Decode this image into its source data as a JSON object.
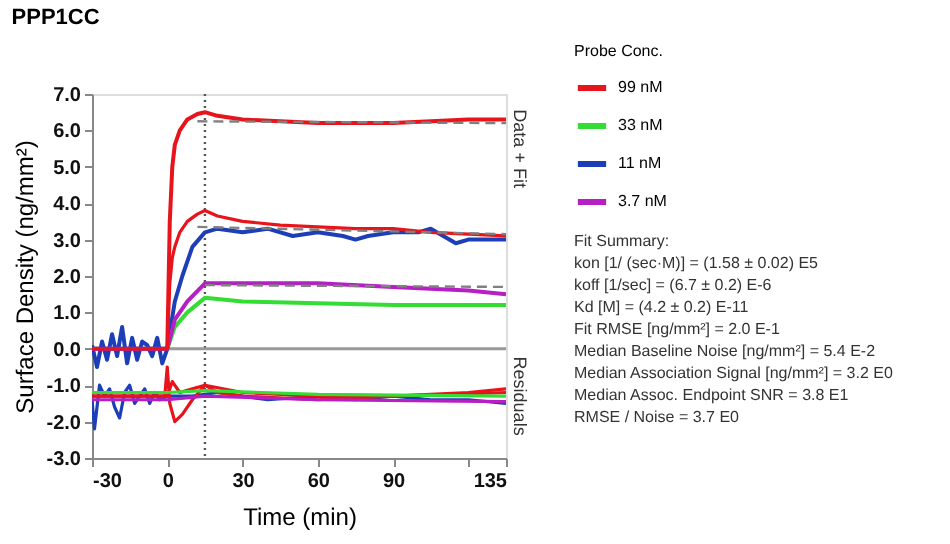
{
  "chart_data": {
    "type": "line",
    "title": "PPP1CC",
    "xlabel": "Time (min)",
    "ylabel": "Surface Density (ng/mm²)",
    "legend_title": "Probe Conc.",
    "legend": "top right",
    "grid": false,
    "marker": "none",
    "line_style": "solid",
    "xlim": [
      -30,
      135
    ],
    "xticks": [
      -30,
      0,
      30,
      60,
      90,
      {
        "value": 120,
        "label": null
      },
      135
    ],
    "ylim": [
      -3,
      7
    ],
    "yticks": [
      {
        "value": -3,
        "label": "-3.0"
      },
      {
        "value": -2,
        "label": "-2.0"
      },
      {
        "value": -1,
        "label": "-1.0"
      },
      {
        "value": 0,
        "label": "0.0"
      },
      {
        "value": 1,
        "label": "1.0"
      },
      {
        "value": 2,
        "label": "2.0"
      },
      {
        "value": 3,
        "label": "3.0"
      },
      {
        "value": 4,
        "label": "4.0"
      },
      {
        "value": 5,
        "label": "5.0"
      },
      {
        "value": 6,
        "label": "6.0"
      },
      {
        "value": 7,
        "label": "7.0"
      }
    ],
    "ref_lines": [
      {
        "axis": "y",
        "value": 0,
        "label": null,
        "color": "#999999",
        "line_style": "solid"
      },
      {
        "axis": "x",
        "value": 15,
        "label": null,
        "color": "#555555",
        "line_style": "dotted"
      }
    ],
    "annotations": [
      "Data + Fit",
      "Residuals",
      "Fit Summary:\n\nkon  [1/ (sec·M)]  =   (1.58 ± 0.02) E5\nkoff  [1/sec]  =   (6.7 ± 0.2) E-6\nKd  [M]  =   (4.2 ± 0.2) E-11\n\nFit RMSE [ng/mm²]  =   2.0 E-1\nMedian Baseline Noise [ng/mm²]  =   5.4 E-2\nMedian Association Signal [ng/mm²]  =   3.2 E0\nMedian Assoc. Endpoint SNR  =   3.8 E1\nRMSE / Noise  =   3.7 E0"
    ],
    "series": [
      {
        "name": "99 nM",
        "color": "#e8141c",
        "x": [
          -30,
          -20,
          -10,
          0,
          1,
          2,
          3,
          5,
          8,
          12,
          15,
          20,
          30,
          45,
          60,
          75,
          90,
          105,
          120,
          135
        ],
        "values": [
          0,
          0,
          0,
          0,
          3.5,
          5.0,
          5.6,
          6.0,
          6.3,
          6.45,
          6.5,
          6.4,
          6.3,
          6.25,
          6.2,
          6.2,
          6.2,
          6.25,
          6.3,
          6.3
        ]
      },
      {
        "name": "33 nM",
        "color": "#33dd33",
        "x": [
          -30,
          0,
          3,
          8,
          15,
          30,
          60,
          90,
          120,
          135
        ],
        "values": [
          0,
          0,
          0.6,
          1.0,
          1.4,
          1.3,
          1.25,
          1.2,
          1.2,
          1.2
        ]
      },
      {
        "name": "11 nM",
        "color": "#1c3fb8",
        "x": [
          -30,
          -28,
          -26,
          -24,
          -22,
          -20,
          -18,
          -16,
          -14,
          -12,
          -10,
          -8,
          -6,
          -4,
          -2,
          0,
          3,
          6,
          10,
          15,
          20,
          30,
          40,
          50,
          60,
          70,
          75,
          80,
          90,
          100,
          105,
          110,
          115,
          120,
          135
        ],
        "values": [
          0.1,
          -0.5,
          0.2,
          -0.3,
          0.4,
          -0.2,
          0.6,
          -0.4,
          0.3,
          -0.3,
          0.2,
          0.1,
          -0.2,
          0.3,
          -0.4,
          0,
          1.3,
          2.0,
          2.8,
          3.2,
          3.3,
          3.2,
          3.3,
          3.1,
          3.2,
          3.1,
          3.0,
          3.1,
          3.2,
          3.2,
          3.3,
          3.1,
          2.9,
          3.0,
          3.0
        ]
      },
      {
        "name": "3.7 nM",
        "color": "#b51fc4",
        "x": [
          -30,
          0,
          3,
          8,
          15,
          30,
          60,
          90,
          120,
          135
        ],
        "values": [
          0,
          0,
          0.8,
          1.3,
          1.8,
          1.8,
          1.8,
          1.7,
          1.6,
          1.5
        ]
      },
      {
        "color": "#e8141c",
        "x": [
          -30,
          0,
          1,
          2,
          3,
          5,
          8,
          12,
          15,
          20,
          30,
          45,
          60,
          75,
          90,
          105,
          120,
          135
        ],
        "values": [
          0,
          0,
          1.8,
          2.5,
          2.8,
          3.2,
          3.5,
          3.7,
          3.8,
          3.65,
          3.5,
          3.4,
          3.35,
          3.3,
          3.3,
          3.2,
          3.15,
          3.1
        ]
      },
      {
        "color": "#808080",
        "line_style": "dashed",
        "x": [
          12,
          135
        ],
        "values": [
          6.25,
          6.2
        ]
      },
      {
        "color": "#808080",
        "line_style": "dashed",
        "x": [
          12,
          135
        ],
        "values": [
          3.35,
          3.15
        ]
      },
      {
        "color": "#808080",
        "line_style": "dashed",
        "x": [
          15,
          135
        ],
        "values": [
          1.75,
          1.7
        ]
      },
      {
        "color": "#1c3fb8",
        "x": [
          -30,
          -29,
          -27,
          -25,
          -23,
          -21,
          -19,
          -17,
          -15,
          -13,
          -11,
          -9,
          -7,
          -5,
          -3,
          0,
          10,
          20,
          30,
          40,
          60,
          75,
          90,
          105,
          120,
          135
        ],
        "values": [
          -1.4,
          -2.2,
          -1.0,
          -1.3,
          -1.1,
          -1.6,
          -1.9,
          -1.2,
          -1.0,
          -1.5,
          -1.3,
          -1.1,
          -1.5,
          -1.2,
          -1.4,
          -1.3,
          -1.3,
          -1.2,
          -1.3,
          -1.4,
          -1.3,
          -1.4,
          -1.3,
          -1.4,
          -1.4,
          -1.5
        ]
      },
      {
        "color": "#e8141c",
        "x": [
          -30,
          -10,
          -1,
          0,
          1,
          3,
          6,
          10,
          15,
          20,
          30,
          60,
          90,
          120,
          135
        ],
        "values": [
          -1.3,
          -1.3,
          -1.3,
          -0.5,
          -1.5,
          -2.0,
          -1.8,
          -1.4,
          -1.0,
          -1.2,
          -1.3,
          -1.4,
          -1.3,
          -1.2,
          -1.1
        ]
      },
      {
        "color": "#e8141c",
        "x": [
          -30,
          0,
          2,
          5,
          10,
          15,
          30,
          60,
          90,
          135
        ],
        "values": [
          -1.3,
          -1.3,
          -0.9,
          -1.2,
          -1.1,
          -1.0,
          -1.2,
          -1.3,
          -1.3,
          -1.2
        ]
      },
      {
        "color": "#b51fc4",
        "x": [
          -30,
          0,
          15,
          60,
          135
        ],
        "values": [
          -1.4,
          -1.4,
          -1.3,
          -1.4,
          -1.45
        ]
      },
      {
        "color": "#33dd33",
        "x": [
          -30,
          0,
          15,
          60,
          135
        ],
        "values": [
          -1.2,
          -1.2,
          -1.15,
          -1.25,
          -1.3
        ]
      }
    ]
  }
}
